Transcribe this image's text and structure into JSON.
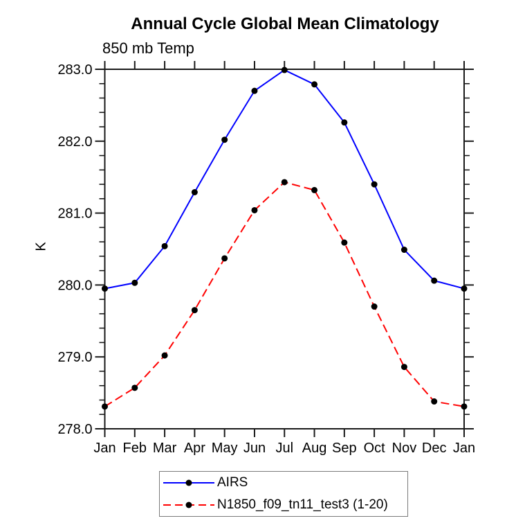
{
  "chart_data": {
    "type": "line",
    "title": "Annual Cycle Global Mean Climatology",
    "subtitle_left": "850 mb Temp",
    "ylabel": "K",
    "xlabel": "",
    "ylim": [
      278.0,
      283.0
    ],
    "ytick_step_major": 1.0,
    "ytick_step_minor": 0.2,
    "ytick_labels_top_to_bottom": [
      "283.0",
      "282.0",
      "281.0",
      "280.0",
      "279.0",
      "278.0"
    ],
    "x_categories": [
      "Jan",
      "Feb",
      "Mar",
      "Apr",
      "May",
      "Jun",
      "Jul",
      "Aug",
      "Sep",
      "Oct",
      "Nov",
      "Dec",
      "Jan"
    ],
    "grid": false,
    "frame": "box-with-outward-ticks",
    "legend_position": "bottom-center",
    "series": [
      {
        "name": "AIRS",
        "color": "#0000ff",
        "line_style": "solid",
        "marker": "filled-circle",
        "marker_color": "#000000",
        "values": [
          279.95,
          280.03,
          280.54,
          281.29,
          282.02,
          282.7,
          282.99,
          282.79,
          282.26,
          281.4,
          280.49,
          280.06,
          279.95
        ]
      },
      {
        "name": "N1850_f09_tn11_test3 (1-20)",
        "color": "#ff0000",
        "line_style": "dashed",
        "marker": "filled-circle",
        "marker_color": "#000000",
        "values": [
          278.31,
          278.57,
          279.02,
          279.65,
          280.37,
          281.04,
          281.43,
          281.32,
          280.59,
          279.7,
          278.86,
          278.38,
          278.31
        ]
      }
    ],
    "colors": {
      "axis": "#1a1a1a",
      "background": "#ffffff",
      "legend_border": "#7a7a7a"
    }
  }
}
